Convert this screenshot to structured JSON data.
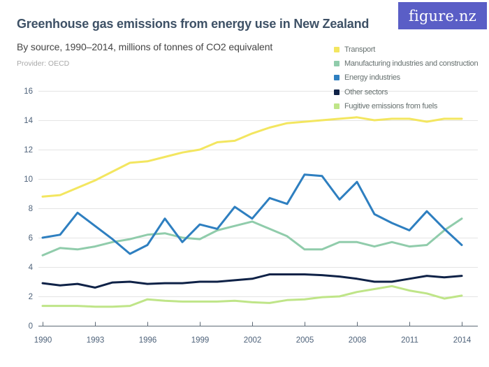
{
  "header": {
    "title": "Greenhouse gas emissions from energy use in New Zealand",
    "subtitle": "By source, 1990–2014, millions of tonnes of CO2 equivalent",
    "provider": "Provider: OECD",
    "logo_text": "figure.nz"
  },
  "colors": {
    "title_text": "#3e5166",
    "subtitle_text": "#454545",
    "provider_text": "#a8a8a8",
    "legend_text": "#66706f",
    "logo_bg": "#5a5ec6",
    "logo_text": "#ffffff",
    "axis_label": "#4e627a",
    "axis_line": "#5d6a76",
    "gridline": "#e4e4e4",
    "background": "#ffffff"
  },
  "chart_data": {
    "type": "line",
    "title": "Greenhouse gas emissions from energy use in New Zealand",
    "subtitle": "By source, 1990–2014, millions of tonnes of CO2 equivalent",
    "ylabel": "millions of tonnes of CO2 equivalent",
    "xlabel": "",
    "grid": true,
    "legend_position": "top-right",
    "ylim": [
      0,
      16
    ],
    "yticks": [
      0,
      2,
      4,
      6,
      8,
      10,
      12,
      14,
      16
    ],
    "xticks": [
      1990,
      1993,
      1996,
      1999,
      2002,
      2005,
      2008,
      2011,
      2014
    ],
    "x": [
      1990,
      1991,
      1992,
      1993,
      1994,
      1995,
      1996,
      1997,
      1998,
      1999,
      2000,
      2001,
      2002,
      2003,
      2004,
      2005,
      2006,
      2007,
      2008,
      2009,
      2010,
      2011,
      2012,
      2013,
      2014
    ],
    "series": [
      {
        "name": "Transport",
        "color": "#f3e660",
        "values": [
          8.8,
          8.9,
          9.4,
          9.9,
          10.5,
          11.1,
          11.2,
          11.5,
          11.8,
          12.0,
          12.5,
          12.6,
          13.1,
          13.5,
          13.8,
          13.9,
          14.0,
          14.1,
          14.2,
          14.0,
          14.1,
          14.1,
          13.9,
          14.1,
          14.1
        ]
      },
      {
        "name": "Manufacturing industries and construction",
        "color": "#90ccab",
        "values": [
          4.8,
          5.3,
          5.2,
          5.4,
          5.7,
          5.9,
          6.2,
          6.3,
          6.0,
          5.9,
          6.5,
          6.8,
          7.1,
          6.6,
          6.1,
          5.2,
          5.2,
          5.7,
          5.7,
          5.4,
          5.7,
          5.4,
          5.5,
          6.5,
          7.3
        ]
      },
      {
        "name": "Energy industries",
        "color": "#2e7fc0",
        "values": [
          6.0,
          6.2,
          7.7,
          6.8,
          5.9,
          4.9,
          5.5,
          7.3,
          5.7,
          6.9,
          6.6,
          8.1,
          7.3,
          8.7,
          8.3,
          10.3,
          10.2,
          8.6,
          9.8,
          7.6,
          7.0,
          6.5,
          7.8,
          6.6,
          5.5
        ]
      },
      {
        "name": "Other sectors",
        "color": "#0f2247",
        "values": [
          2.9,
          2.75,
          2.85,
          2.6,
          2.95,
          3.0,
          2.85,
          2.9,
          2.9,
          3.0,
          3.0,
          3.1,
          3.2,
          3.5,
          3.5,
          3.5,
          3.45,
          3.35,
          3.2,
          3.0,
          3.0,
          3.2,
          3.4,
          3.3,
          3.4
        ]
      },
      {
        "name": "Fugitive emissions from fuels",
        "color": "#bfe588",
        "values": [
          1.35,
          1.35,
          1.35,
          1.3,
          1.3,
          1.35,
          1.8,
          1.7,
          1.65,
          1.65,
          1.65,
          1.7,
          1.6,
          1.55,
          1.75,
          1.8,
          1.95,
          2.0,
          2.3,
          2.5,
          2.7,
          2.4,
          2.2,
          1.85,
          2.05
        ]
      }
    ]
  }
}
